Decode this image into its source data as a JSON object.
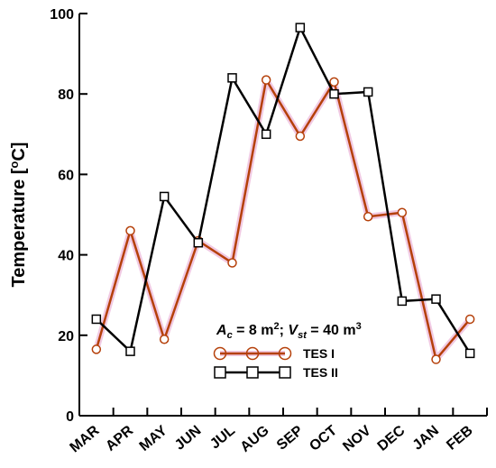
{
  "chart_data": {
    "type": "line",
    "title": "",
    "xlabel": "",
    "ylabel": "Temperature [oC]",
    "ylabel_main": "Temperature [",
    "ylabel_sup": "o",
    "ylabel_end": "C]",
    "categories": [
      "MAR",
      "APR",
      "MAY",
      "JUN",
      "JUL",
      "AUG",
      "SEP",
      "OCT",
      "NOV",
      "DEC",
      "JAN",
      "FEB"
    ],
    "ylim": [
      0,
      100
    ],
    "yticks": [
      "0",
      "20",
      "40",
      "60",
      "80",
      "100"
    ],
    "grid": false,
    "legend_position": "bottom-center",
    "annotation": {
      "a_sym": "A",
      "a_sub": "c",
      "a_val": " = 8 m",
      "a_sup": "2",
      "sep": "; ",
      "v_sym": "V",
      "v_sub": "st",
      "v_val": " = 40 m",
      "v_sup": "3"
    },
    "series": [
      {
        "name": "TES I",
        "color": "#b5400a",
        "glow": "#e08ac0",
        "marker": "circle",
        "values": [
          16.5,
          46,
          19,
          43.5,
          38,
          83.5,
          69.5,
          83,
          49.5,
          50.5,
          14,
          24
        ]
      },
      {
        "name": "TES II",
        "color": "#000000",
        "marker": "square",
        "values": [
          24,
          16,
          54.5,
          43,
          84,
          70,
          96.5,
          80,
          80.5,
          28.5,
          29,
          15.5
        ]
      }
    ]
  }
}
